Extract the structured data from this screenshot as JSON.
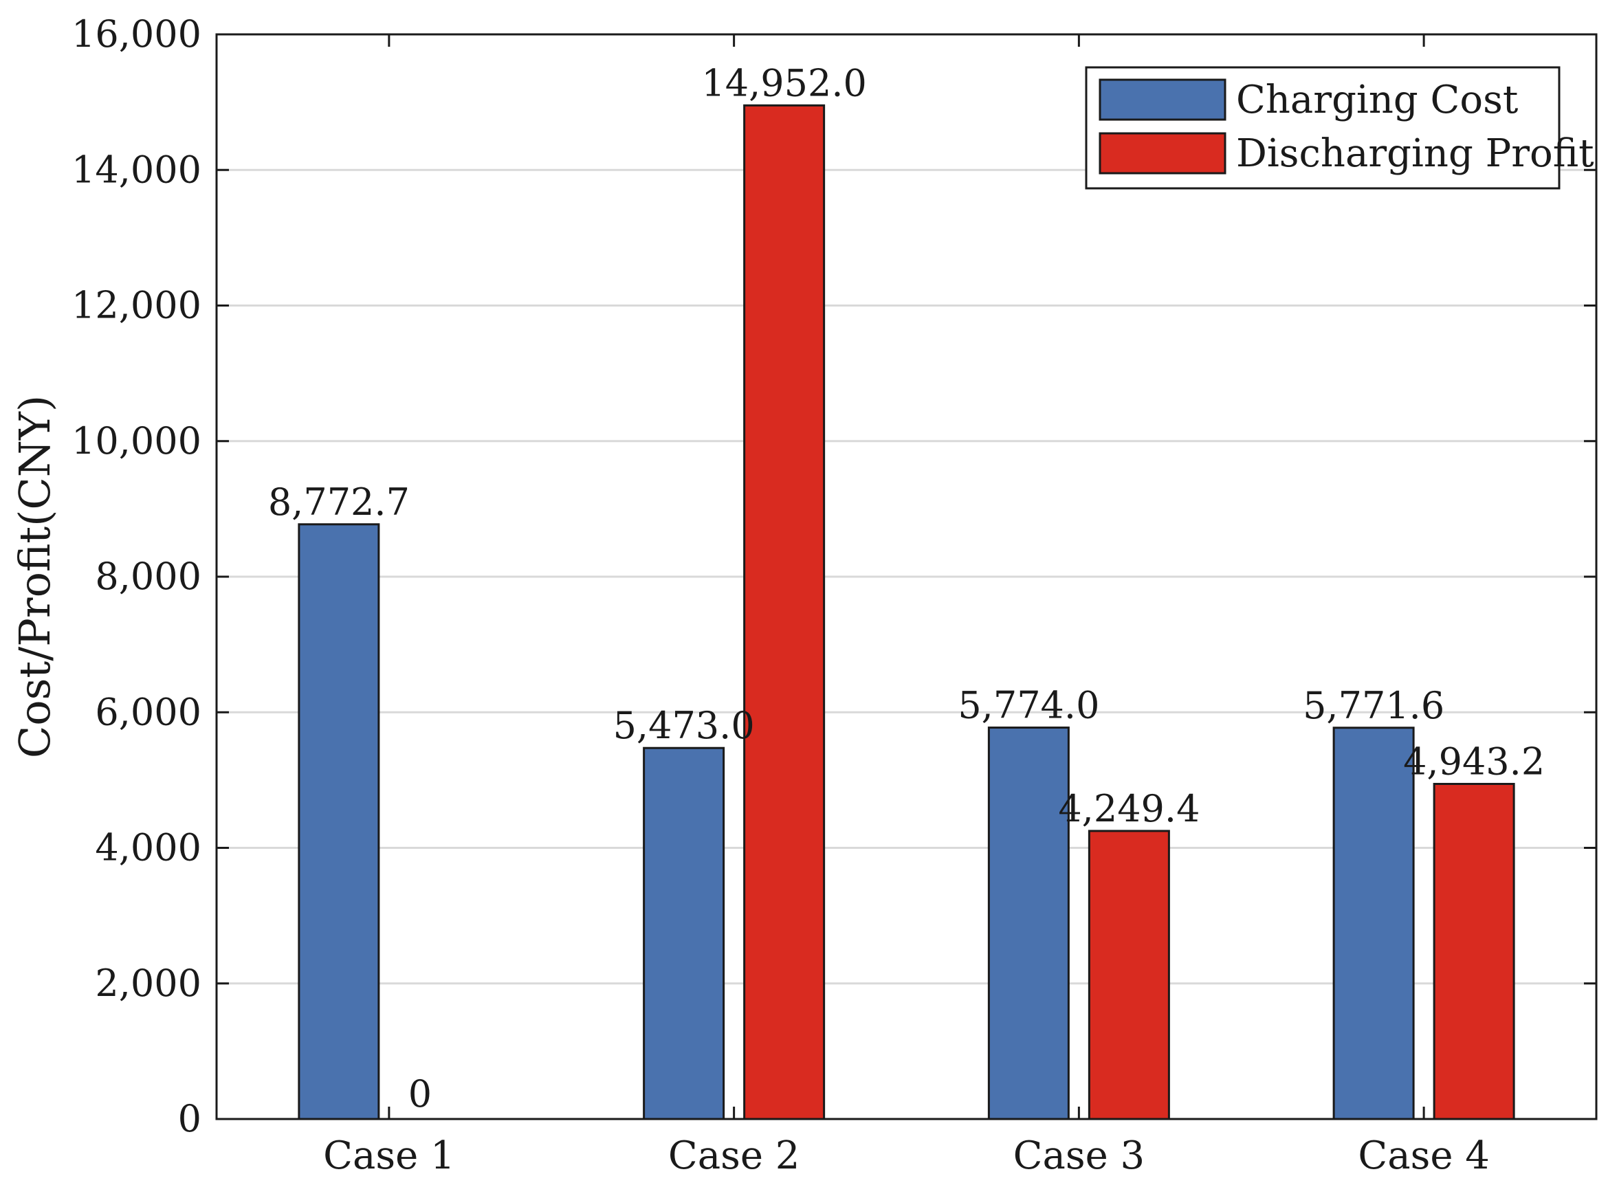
{
  "chart_data": {
    "type": "bar",
    "title": "",
    "xlabel": "",
    "ylabel": "Cost/Profit(CNY)",
    "ylim": [
      0,
      16000
    ],
    "yticks": [
      0,
      2000,
      4000,
      6000,
      8000,
      10000,
      12000,
      14000,
      16000
    ],
    "ytick_labels": [
      "0",
      "2,000",
      "4,000",
      "6,000",
      "8,000",
      "10,000",
      "12,000",
      "14,000",
      "16,000"
    ],
    "categories": [
      "Case 1",
      "Case 2",
      "Case 3",
      "Case 4"
    ],
    "series": [
      {
        "name": "Charging Cost",
        "color": "#4a72ae",
        "values": [
          8772.7,
          5473.0,
          5774.0,
          5771.6
        ],
        "labels": [
          "8,772.7",
          "5,473.0",
          "5,774.0",
          "5,771.6"
        ]
      },
      {
        "name": "Discharging Profit",
        "color": "#d92b20",
        "values": [
          0,
          14952.0,
          4249.4,
          4943.2
        ],
        "labels": [
          "0",
          "14,952.0",
          "4,249.4",
          "4,943.2"
        ]
      }
    ],
    "grid": true,
    "legend_position": "top-right"
  }
}
